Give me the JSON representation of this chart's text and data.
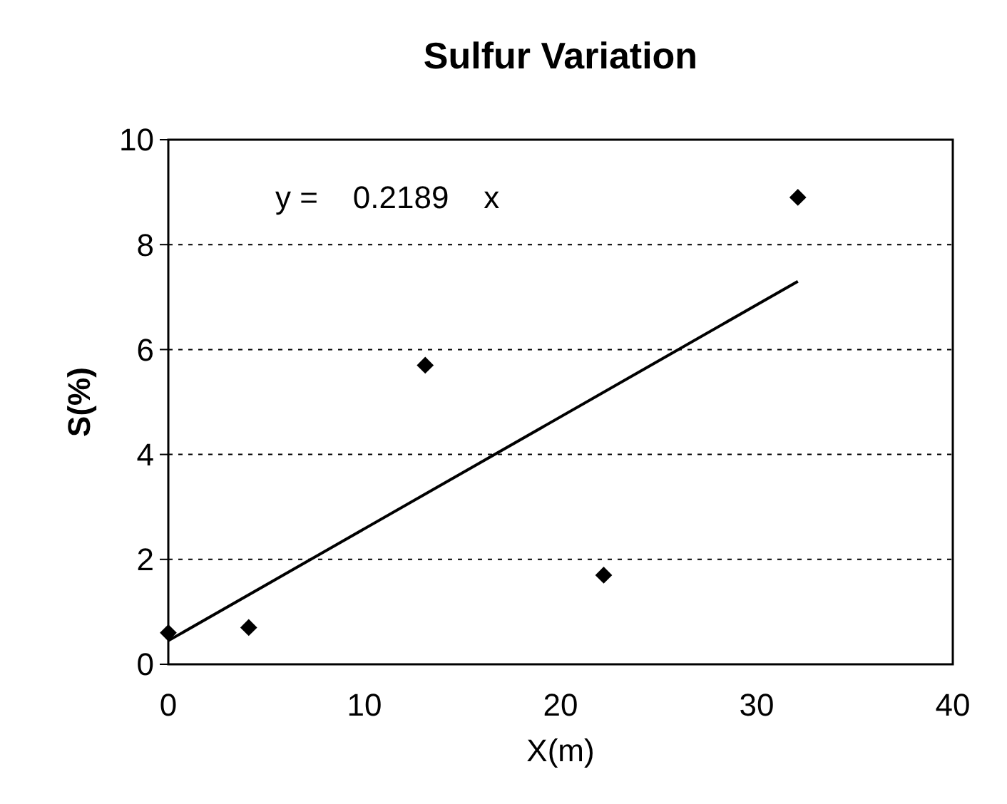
{
  "chart_data": {
    "type": "scatter",
    "title": "Sulfur Variation",
    "xlabel": "X(m)",
    "ylabel": "S(%)",
    "xlim": [
      0,
      40
    ],
    "xticks": [
      0,
      10,
      20,
      30,
      40
    ],
    "ylim": [
      0,
      10
    ],
    "yticks": [
      0,
      2,
      4,
      6,
      8,
      10
    ],
    "grid": "y",
    "marker": "diamond",
    "annotations": [
      "y =    0.2189    x"
    ],
    "series": [
      {
        "color": "#000000",
        "x": [
          0,
          4.1,
          13.1,
          22.2,
          32.1
        ],
        "values": [
          0.6,
          0.7,
          5.7,
          1.7,
          8.9
        ]
      },
      {
        "type": "line",
        "color": "#000000",
        "marker": "none",
        "line_style": "solid",
        "x": [
          0,
          32.1
        ],
        "values": [
          0.45,
          7.3
        ]
      }
    ]
  }
}
